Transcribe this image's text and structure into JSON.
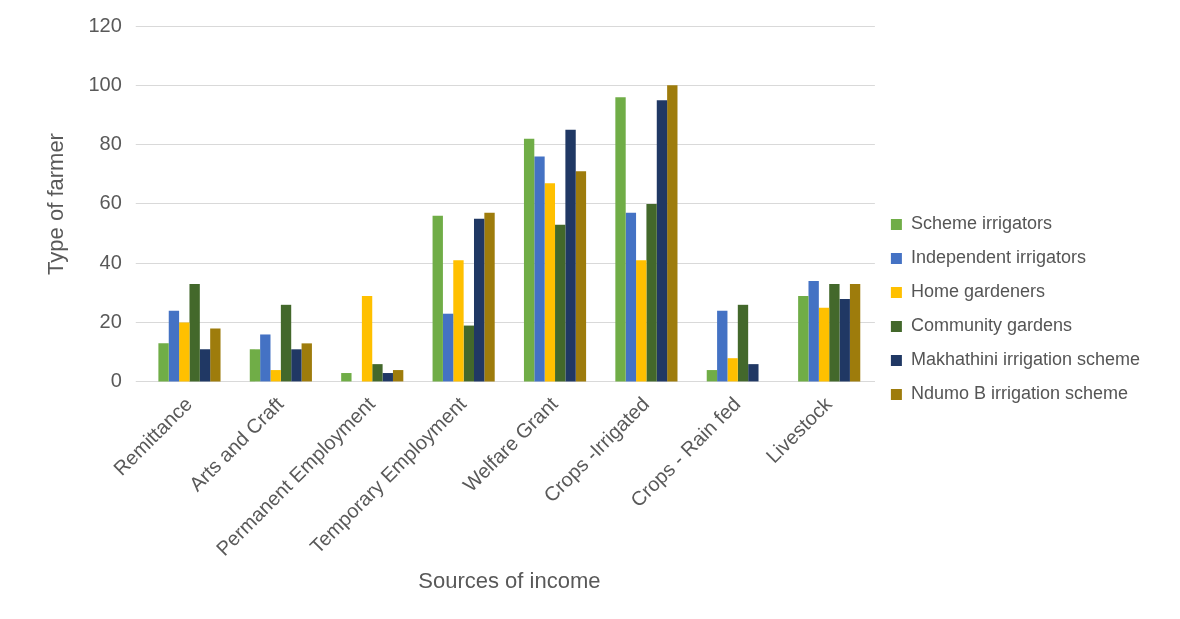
{
  "chart_data": {
    "type": "bar",
    "categories": [
      "Remittance",
      "Arts and Craft",
      "Permanent Employment",
      "Temporary Employment",
      "Welfare Grant",
      "Crops -Irrigated",
      "Crops - Rain fed",
      "Livestock"
    ],
    "series": [
      {
        "name": "Scheme irrigators",
        "color": "#70ad47",
        "values": [
          13,
          11,
          3,
          56,
          82,
          96,
          4,
          29
        ]
      },
      {
        "name": "Independent irrigators",
        "color": "#4472c4",
        "values": [
          24,
          16,
          0,
          23,
          76,
          57,
          24,
          34
        ]
      },
      {
        "name": "Home gardeners",
        "color": "#ffc000",
        "values": [
          20,
          4,
          29,
          41,
          67,
          41,
          8,
          25
        ]
      },
      {
        "name": "Community gardens",
        "color": "#43682b",
        "values": [
          33,
          26,
          6,
          19,
          53,
          60,
          26,
          33
        ]
      },
      {
        "name": "Makhathini irrigation scheme",
        "color": "#203864",
        "values": [
          11,
          11,
          3,
          55,
          85,
          95,
          6,
          28
        ]
      },
      {
        "name": "Ndumo B irrigation scheme",
        "color": "#9e7c0c",
        "values": [
          18,
          13,
          4,
          57,
          71,
          100,
          0,
          33
        ]
      }
    ],
    "xlabel": "Sources of income",
    "ylabel": "Type of farmer",
    "ylim": [
      0,
      120
    ],
    "yticks": [
      0,
      20,
      40,
      60,
      80,
      100,
      120
    ],
    "grid": "y",
    "legend": "right"
  }
}
